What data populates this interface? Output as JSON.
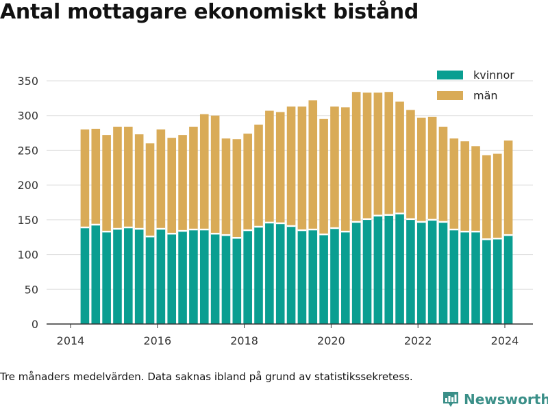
{
  "chart_data": {
    "type": "bar",
    "stacked": true,
    "title": "Antal mottagare ekonomiskt bistånd",
    "xlabel": "",
    "ylabel": "",
    "ylim": [
      0,
      350
    ],
    "yticks": [
      0,
      50,
      100,
      150,
      200,
      250,
      300,
      350
    ],
    "xticks": [
      2014,
      2016,
      2018,
      2020,
      2022,
      2024
    ],
    "xlim": [
      2013.5,
      2024.75
    ],
    "grid": "horizontal",
    "legend_position": "top-right",
    "x": [
      2014.33,
      2014.58,
      2014.83,
      2015.08,
      2015.33,
      2015.58,
      2015.83,
      2016.08,
      2016.33,
      2016.58,
      2016.83,
      2017.08,
      2017.33,
      2017.58,
      2017.83,
      2018.08,
      2018.33,
      2018.58,
      2018.83,
      2019.08,
      2019.33,
      2019.58,
      2019.83,
      2020.08,
      2020.33,
      2020.58,
      2020.83,
      2021.08,
      2021.33,
      2021.58,
      2021.83,
      2022.08,
      2022.33,
      2022.58,
      2022.83,
      2023.08,
      2023.33,
      2023.58,
      2023.83,
      2024.08
    ],
    "series": [
      {
        "name": "kvinnor",
        "color": "#0a9e91",
        "values": [
          139,
          143,
          133,
          137,
          139,
          137,
          126,
          137,
          130,
          134,
          136,
          136,
          130,
          128,
          124,
          135,
          140,
          146,
          145,
          141,
          135,
          136,
          129,
          138,
          133,
          147,
          151,
          156,
          157,
          159,
          151,
          147,
          150,
          147,
          136,
          133,
          133,
          122,
          123,
          128
        ]
      },
      {
        "name": "män",
        "color": "#d9ab57",
        "values": [
          141,
          138,
          139,
          147,
          145,
          136,
          134,
          143,
          138,
          138,
          148,
          166,
          170,
          139,
          142,
          139,
          147,
          161,
          160,
          172,
          178,
          186,
          166,
          175,
          179,
          187,
          182,
          177,
          177,
          161,
          157,
          150,
          148,
          137,
          131,
          130,
          123,
          121,
          122,
          136
        ]
      }
    ]
  },
  "footnote": "Tre månaders medelvärden. Data saknas ibland på grund av statistikssekretess.",
  "brand": {
    "name": "Newsworthy",
    "color": "#3a8f88",
    "icon": "newsworthy-logo-icon"
  }
}
